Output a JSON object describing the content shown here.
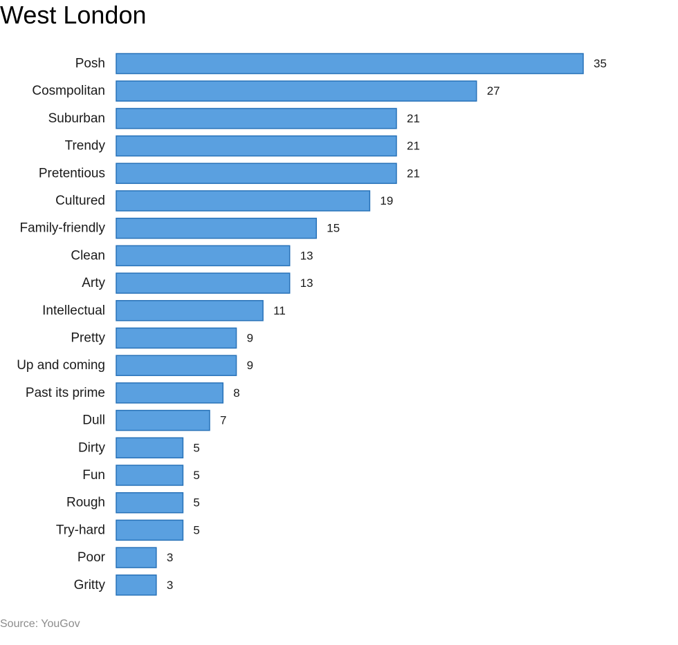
{
  "chart_data": {
    "type": "bar",
    "orientation": "horizontal",
    "title": "West London",
    "categories": [
      "Posh",
      "Cosmpolitan",
      "Suburban",
      "Trendy",
      "Pretentious",
      "Cultured",
      "Family-friendly",
      "Clean",
      "Arty",
      "Intellectual",
      "Pretty",
      "Up and coming",
      "Past its prime",
      "Dull",
      "Dirty",
      "Fun",
      "Rough",
      "Try-hard",
      "Poor",
      "Gritty"
    ],
    "values": [
      35,
      27,
      21,
      21,
      21,
      19,
      15,
      13,
      13,
      11,
      9,
      9,
      8,
      7,
      5,
      5,
      5,
      5,
      3,
      3
    ],
    "xlim": [
      0,
      35
    ],
    "grid": false,
    "data_labels": true,
    "bar_fill": "#5aa0e0",
    "bar_stroke": "#2872b8"
  },
  "source": "Source: YouGov"
}
